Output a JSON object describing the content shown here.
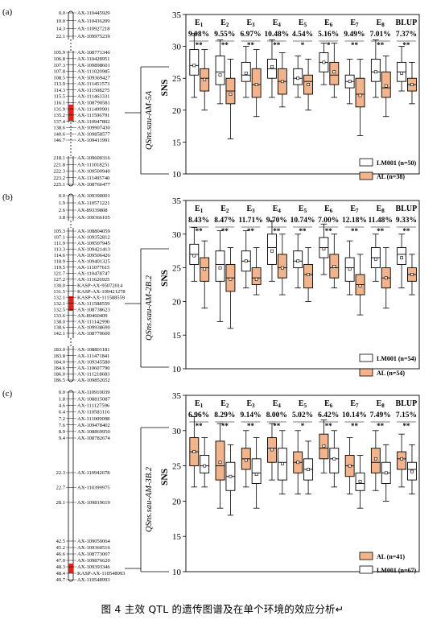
{
  "caption": "图 4  主效 QTL 的遗传图谱及在单个环境的效应分析↵",
  "style": {
    "white_fill": "#ffffff",
    "orange_fill": "#f3b48c",
    "stroke": "#000000",
    "qtl_mark": "#e0231b"
  },
  "panels": [
    {
      "label": "(a)",
      "qtl": "QSns.sau-AM-5A",
      "markers": [
        [
          "0.0",
          "AX-110445929"
        ],
        [
          "10.0",
          "AX-110436209"
        ],
        [
          "14.3",
          "AX-110927218"
        ],
        [
          "22.1",
          "AX-109975239"
        ],
        [
          "105.9",
          "AX-108771346"
        ],
        [
          "106.8",
          "AX-110428951"
        ],
        [
          "107.3",
          "AX-109898601"
        ],
        [
          "107.8",
          "AX-111020985"
        ],
        [
          "108.5",
          "AX-109369427"
        ],
        [
          "113.9",
          "AX-111451573"
        ],
        [
          "114.3",
          "AX-111508275"
        ],
        [
          "115.5",
          "AX-111463331"
        ],
        [
          "116.1",
          "AX-108790581"
        ],
        [
          "131.9",
          "AX-111499901"
        ],
        [
          "135.2",
          "AX-111596791"
        ],
        [
          "137.4",
          "AX-110947802"
        ],
        [
          "138.6",
          "AX-109907430"
        ],
        [
          "140.6",
          "AX-109858577"
        ],
        [
          "146.7",
          "AX-109411991"
        ],
        [
          "218.1",
          "AX-109600316"
        ],
        [
          "221.8",
          "AX-111018251"
        ],
        [
          "222.3",
          "AX-109500940"
        ],
        [
          "223.2",
          "AX-111495740"
        ],
        [
          "225.1",
          "AX-108766477"
        ]
      ],
      "envs": [
        "E1",
        "E2",
        "E3",
        "E4",
        "E5",
        "E6",
        "E7",
        "E8",
        "BLUP"
      ],
      "pve": [
        "9.08%",
        "9.55%",
        "6.97%",
        "10.48%",
        "4.54%",
        "5.16%",
        "9.49%",
        "7.01%",
        "7.37%"
      ],
      "sig": [
        "**",
        "**",
        "**",
        "**",
        "*",
        "*",
        "**",
        "**",
        "**"
      ],
      "yaxis": {
        "label": "SNS",
        "ticks": [
          "10",
          "15",
          "20",
          "25",
          "30",
          "35"
        ],
        "min": 10,
        "max": 35
      },
      "legend": [
        {
          "text": "LM001 (n=50)",
          "fill": "white"
        },
        {
          "text": "AL (n=38)",
          "fill": "orange"
        }
      ],
      "boxes": [
        {
          "fill": "white",
          "min": 22,
          "q1": 25.5,
          "med": 27,
          "q3": 29.5,
          "max": 32,
          "mean": 27
        },
        {
          "fill": "orange",
          "min": 20,
          "q1": 23,
          "med": 25,
          "q3": 26.5,
          "max": 29.5,
          "mean": 24.8
        },
        {
          "fill": "white",
          "min": 21,
          "q1": 24,
          "med": 26,
          "q3": 28.5,
          "max": 31,
          "mean": 25.5
        },
        {
          "fill": "orange",
          "min": 15.5,
          "q1": 21,
          "med": 23,
          "q3": 25,
          "max": 28,
          "mean": 22.5
        },
        {
          "fill": "white",
          "min": 22,
          "q1": 24.5,
          "med": 25.5,
          "q3": 27.5,
          "max": 30,
          "mean": 25.8
        },
        {
          "fill": "orange",
          "min": 19,
          "q1": 22,
          "med": 24,
          "q3": 26.5,
          "max": 29.5,
          "mean": 24
        },
        {
          "fill": "white",
          "min": 22,
          "q1": 25,
          "med": 26.5,
          "q3": 28,
          "max": 31,
          "mean": 26.8
        },
        {
          "fill": "orange",
          "min": 20.5,
          "q1": 22.5,
          "med": 24.5,
          "q3": 26.5,
          "max": 29,
          "mean": 24.5
        },
        {
          "fill": "white",
          "min": 22,
          "q1": 24,
          "med": 25,
          "q3": 26.5,
          "max": 28.5,
          "mean": 25
        },
        {
          "fill": "orange",
          "min": 20,
          "q1": 22.5,
          "med": 24.5,
          "q3": 25.5,
          "max": 28,
          "mean": 24
        },
        {
          "fill": "white",
          "min": 24,
          "q1": 26,
          "med": 27.5,
          "q3": 29,
          "max": 30.5,
          "mean": 27.5
        },
        {
          "fill": "orange",
          "min": 22,
          "q1": 24,
          "med": 25.5,
          "q3": 27.5,
          "max": 30.5,
          "mean": 26
        },
        {
          "fill": "white",
          "min": 21,
          "q1": 23.5,
          "med": 24.5,
          "q3": 25.5,
          "max": 28,
          "mean": 24.5
        },
        {
          "fill": "orange",
          "min": 16,
          "q1": 20.5,
          "med": 22.5,
          "q3": 25,
          "max": 28,
          "mean": 22.3
        },
        {
          "fill": "white",
          "min": 22,
          "q1": 24.5,
          "med": 26,
          "q3": 28,
          "max": 31,
          "mean": 26
        },
        {
          "fill": "orange",
          "min": 19,
          "q1": 22,
          "med": 23.5,
          "q3": 26,
          "max": 28.5,
          "mean": 23.8
        },
        {
          "fill": "white",
          "min": 23,
          "q1": 24.5,
          "med": 26,
          "q3": 27.5,
          "max": 30,
          "mean": 25.8
        },
        {
          "fill": "orange",
          "min": 21,
          "q1": 23,
          "med": 24,
          "q3": 25,
          "max": 27.5,
          "mean": 24
        }
      ]
    },
    {
      "label": "(b)",
      "qtl": "QSns.sau-AM-2B.2",
      "markers": [
        [
          "0.0",
          "AX-109390001"
        ],
        [
          "1.9",
          "AX-110571221"
        ],
        [
          "2.6",
          "AX-89339808"
        ],
        [
          "3.8",
          "AX-109366105"
        ],
        [
          "105.3",
          "AX-108804059"
        ],
        [
          "107.1",
          "AX-109352812"
        ],
        [
          "111.9",
          "AX-109507945"
        ],
        [
          "113.3",
          "AX-109421413"
        ],
        [
          "114.6",
          "AX-109506426"
        ],
        [
          "118.9",
          "AX-109401325"
        ],
        [
          "119.5",
          "AX-111077615"
        ],
        [
          "121.7",
          "AX-110478747"
        ],
        [
          "127.2",
          "AX-111626925"
        ],
        [
          "130.0",
          "KASP-AX-95072014"
        ],
        [
          "131.5",
          "KASP-AX-109421278"
        ],
        [
          "132.1",
          "KASP-AX-111588559"
        ],
        [
          "132.1",
          "AX-111588559"
        ],
        [
          "132.5",
          "AX-108738623"
        ],
        [
          "133.6",
          "AX-89460409"
        ],
        [
          "138.0",
          "AX-111142990"
        ],
        [
          "138.6",
          "AX-109938690"
        ],
        [
          "142.1",
          "AX-108770600"
        ],
        [
          "183.0",
          "AX-108801181"
        ],
        [
          "183.8",
          "AX-111471841"
        ],
        [
          "184.0",
          "AX-109345580"
        ],
        [
          "184.6",
          "AX-110607790"
        ],
        [
          "186.0",
          "AX-111218683"
        ],
        [
          "186.5",
          "AX-109852652"
        ]
      ],
      "envs": [
        "E1",
        "E2",
        "E3",
        "E4",
        "E5",
        "E6",
        "E7",
        "E8",
        "BLUP"
      ],
      "pve": [
        "8.43%",
        "8.47%",
        "11.71%",
        "9.70%",
        "10.74%",
        "7.00%",
        "12.18%",
        "11.48%",
        "9.33%"
      ],
      "sig": [
        "**",
        "**",
        "**",
        "**",
        "**",
        "**",
        "**",
        "**",
        "**"
      ],
      "yaxis": {
        "label": "SNS",
        "ticks": [
          "10",
          "15",
          "20",
          "25",
          "30",
          "35"
        ],
        "min": 10,
        "max": 35
      },
      "legend": [
        {
          "text": "LM001 (n=54)",
          "fill": "white"
        },
        {
          "text": "AL (n=54)",
          "fill": "orange"
        }
      ],
      "boxes": [
        {
          "fill": "white",
          "min": 23,
          "q1": 25.5,
          "med": 27,
          "q3": 28.5,
          "max": 31,
          "mean": 26.8
        },
        {
          "fill": "orange",
          "min": 19,
          "q1": 23,
          "med": 25,
          "q3": 26.5,
          "max": 29,
          "mean": 24.8
        },
        {
          "fill": "white",
          "min": 17,
          "q1": 23,
          "med": 25.5,
          "q3": 27.5,
          "max": 30.5,
          "mean": 25
        },
        {
          "fill": "orange",
          "min": 16,
          "q1": 21.5,
          "med": 23.5,
          "q3": 25.5,
          "max": 28,
          "mean": 23.3
        },
        {
          "fill": "white",
          "min": 22,
          "q1": 24.5,
          "med": 26,
          "q3": 27.5,
          "max": 30.5,
          "mean": 26
        },
        {
          "fill": "orange",
          "min": 21,
          "q1": 22.5,
          "med": 23.5,
          "q3": 25,
          "max": 28,
          "mean": 23.3
        },
        {
          "fill": "white",
          "min": 23,
          "q1": 25.5,
          "med": 28,
          "q3": 30,
          "max": 32,
          "mean": 27.5
        },
        {
          "fill": "orange",
          "min": 21,
          "q1": 23.5,
          "med": 25,
          "q3": 27,
          "max": 30,
          "mean": 25
        },
        {
          "fill": "white",
          "min": 22,
          "q1": 25,
          "med": 26,
          "q3": 27.5,
          "max": 30,
          "mean": 26
        },
        {
          "fill": "orange",
          "min": 20,
          "q1": 22,
          "med": 24,
          "q3": 25.5,
          "max": 28,
          "mean": 24
        },
        {
          "fill": "white",
          "min": 24,
          "q1": 26.5,
          "med": 28,
          "q3": 29.5,
          "max": 31.5,
          "mean": 27.8
        },
        {
          "fill": "orange",
          "min": 22,
          "q1": 23.5,
          "med": 25,
          "q3": 27,
          "max": 30,
          "mean": 25.2
        },
        {
          "fill": "white",
          "min": 21,
          "q1": 23,
          "med": 25,
          "q3": 26.5,
          "max": 29,
          "mean": 24.8
        },
        {
          "fill": "orange",
          "min": 18,
          "q1": 21,
          "med": 22.5,
          "q3": 24,
          "max": 27,
          "mean": 22.3
        },
        {
          "fill": "white",
          "min": 23,
          "q1": 25,
          "med": 26.5,
          "q3": 28,
          "max": 30,
          "mean": 26.3
        },
        {
          "fill": "orange",
          "min": 19,
          "q1": 22,
          "med": 23.5,
          "q3": 25,
          "max": 28,
          "mean": 23.5
        },
        {
          "fill": "white",
          "min": 22,
          "q1": 25.5,
          "med": 27,
          "q3": 28,
          "max": 30,
          "mean": 26.5
        },
        {
          "fill": "orange",
          "min": 21,
          "q1": 23,
          "med": 24,
          "q3": 25,
          "max": 27,
          "mean": 24
        }
      ]
    },
    {
      "label": "(c)",
      "qtl": "QSns.sau-AM-3B.2",
      "markers": [
        [
          "0.0",
          "AX-110910039"
        ],
        [
          "1.8",
          "AX-108815087"
        ],
        [
          "4.6",
          "AX-111127596"
        ],
        [
          "6.4",
          "AX-110583116"
        ],
        [
          "7.2",
          "AX-111009098"
        ],
        [
          "7.6",
          "AX-109478402"
        ],
        [
          "8.9",
          "AX-108869950"
        ],
        [
          "9.4",
          "AX-108782674"
        ],
        [
          "22.3",
          "AX-110942678"
        ],
        [
          "22.7",
          "AX-110399975"
        ],
        [
          "28.1",
          "AX-109819619"
        ],
        [
          "42.5",
          "AX-109050064"
        ],
        [
          "45.2",
          "AX-109360516"
        ],
        [
          "46.6",
          "AX-108773007"
        ],
        [
          "47.0",
          "AX-109876620"
        ],
        [
          "48.3",
          "AX-109393346"
        ],
        [
          "48.4",
          "KASP-AX-110548993"
        ],
        [
          "49.7",
          "AX-110548993"
        ]
      ],
      "envs": [
        "E1",
        "E2",
        "E3",
        "E4",
        "E5",
        "E6",
        "E7",
        "E8",
        "BLUP"
      ],
      "pve": [
        "6.96%",
        "8.29%",
        "9.14%",
        "8.00%",
        "5.02%",
        "6.42%",
        "10.14%",
        "7.49%",
        "7.15%"
      ],
      "sig": [
        "**",
        "**",
        "**",
        "**",
        "*",
        "**",
        "**",
        "**",
        "**"
      ],
      "yaxis": {
        "label": "SNS",
        "ticks": [
          "10",
          "15",
          "20",
          "25",
          "30",
          "35"
        ],
        "min": 10,
        "max": 35
      },
      "legend": [
        {
          "text": "AL (n=41)",
          "fill": "orange"
        },
        {
          "text": "LM001 (n=67)",
          "fill": "white"
        }
      ],
      "boxes": [
        {
          "fill": "orange",
          "min": 22,
          "q1": 25,
          "med": 27,
          "q3": 29,
          "max": 32,
          "mean": 27
        },
        {
          "fill": "white",
          "min": 22,
          "q1": 24,
          "med": 25,
          "q3": 26.5,
          "max": 29,
          "mean": 25
        },
        {
          "fill": "orange",
          "min": 19,
          "q1": 23,
          "med": 25,
          "q3": 28.5,
          "max": 31,
          "mean": 25.5
        },
        {
          "fill": "white",
          "min": 18,
          "q1": 21.5,
          "med": 23.5,
          "q3": 25.5,
          "max": 28,
          "mean": 23.5
        },
        {
          "fill": "orange",
          "min": 22,
          "q1": 24.5,
          "med": 26,
          "q3": 27.5,
          "max": 30,
          "mean": 25.8
        },
        {
          "fill": "white",
          "min": 19,
          "q1": 22.5,
          "med": 24,
          "q3": 26,
          "max": 29,
          "mean": 23.8
        },
        {
          "fill": "orange",
          "min": 23,
          "q1": 25.5,
          "med": 27.5,
          "q3": 29,
          "max": 31,
          "mean": 27.3
        },
        {
          "fill": "white",
          "min": 21,
          "q1": 23,
          "med": 25.5,
          "q3": 27.5,
          "max": 30,
          "mean": 25.3
        },
        {
          "fill": "orange",
          "min": 21,
          "q1": 24,
          "med": 25.5,
          "q3": 27,
          "max": 30,
          "mean": 25.5
        },
        {
          "fill": "white",
          "min": 21,
          "q1": 23,
          "med": 24.5,
          "q3": 26,
          "max": 28.5,
          "mean": 24.5
        },
        {
          "fill": "orange",
          "min": 24,
          "q1": 26,
          "med": 27.5,
          "q3": 29.5,
          "max": 31.5,
          "mean": 27.8
        },
        {
          "fill": "white",
          "min": 22,
          "q1": 24,
          "med": 26,
          "q3": 27.5,
          "max": 30,
          "mean": 26
        },
        {
          "fill": "orange",
          "min": 21,
          "q1": 23.5,
          "med": 25,
          "q3": 26.5,
          "max": 29,
          "mean": 25
        },
        {
          "fill": "white",
          "min": 19,
          "q1": 21.5,
          "med": 22.5,
          "q3": 24,
          "max": 26.5,
          "mean": 22.8
        },
        {
          "fill": "orange",
          "min": 21.5,
          "q1": 24,
          "med": 25.5,
          "q3": 27.5,
          "max": 30,
          "mean": 26
        },
        {
          "fill": "white",
          "min": 20,
          "q1": 22.5,
          "med": 24,
          "q3": 25.5,
          "max": 28,
          "mean": 24
        },
        {
          "fill": "orange",
          "min": 22,
          "q1": 24.5,
          "med": 26,
          "q3": 27,
          "max": 29.5,
          "mean": 26
        },
        {
          "fill": "white",
          "min": 21,
          "q1": 23,
          "med": 24.5,
          "q3": 25.5,
          "max": 28,
          "mean": 24.2
        }
      ]
    }
  ]
}
